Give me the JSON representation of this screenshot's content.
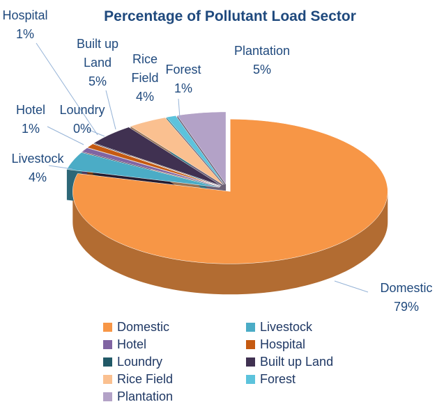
{
  "chart_data": {
    "type": "pie",
    "title": "Percentage of Pollutant Load Sector",
    "categories": [
      "Domestic",
      "Livestock",
      "Hotel",
      "Hospital",
      "Loundry",
      "Built up Land",
      "Rice Field",
      "Forest",
      "Plantation"
    ],
    "values": [
      79,
      4,
      1,
      1,
      0,
      5,
      4,
      1,
      5
    ],
    "value_labels": [
      "79%",
      "4%",
      "1%",
      "1%",
      "0%",
      "5%",
      "4%",
      "1%",
      "5%"
    ],
    "colors": [
      "#f79646",
      "#4bacc6",
      "#8064a2",
      "#c55a11",
      "#215967",
      "#403151",
      "#fac090",
      "#5cc3dc",
      "#b3a2c7"
    ],
    "legend": "bottom"
  }
}
